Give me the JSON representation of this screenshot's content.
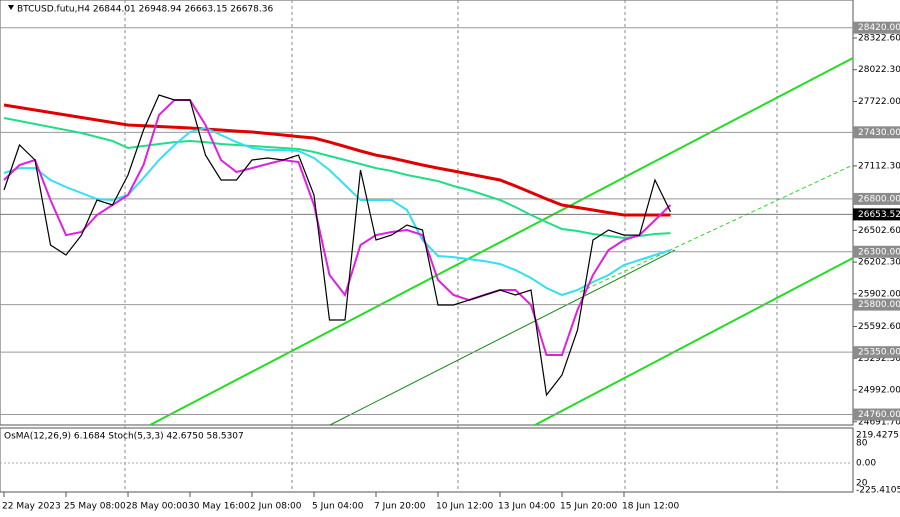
{
  "chart_data": [
    {
      "type": "line",
      "title": "BTCUSD.futu,H4  26844.01 26948.94 26663.15 26678.36",
      "categories": [
        "22 May 2023",
        null,
        null,
        null,
        "25 May 08:00",
        null,
        null,
        null,
        "28 May 00:00",
        null,
        null,
        null,
        "30 May 16:00",
        null,
        null,
        null,
        "2 Jun 08:00",
        null,
        null,
        null,
        "5 Jun 04:00",
        null,
        null,
        null,
        "7 Jun 20:00",
        null,
        null,
        null,
        "10 Jun 12:00",
        null,
        null,
        null,
        "13 Jun 04:00",
        null,
        null,
        null,
        "15 Jun 20:00",
        null,
        null,
        null,
        "18 Jun 12:00",
        null,
        null,
        null
      ],
      "series": [
        {
          "color": "#e00000",
          "values": [
            27689,
            27665,
            27641,
            27618,
            27594,
            27570,
            27547,
            27523,
            27499,
            27492,
            27485,
            27478,
            27471,
            27461,
            27452,
            27442,
            27433,
            27419,
            27405,
            27390,
            27376,
            27338,
            27296,
            27253,
            27215,
            27187,
            27154,
            27121,
            27092,
            27064,
            27036,
            27007,
            26979,
            26922,
            26861,
            26799,
            26742,
            26719,
            26695,
            26671,
            26648,
            26648,
            26648,
            26648
          ]
        },
        {
          "color": "#22dd88",
          "values": [
            27566,
            27537,
            27509,
            27480,
            27452,
            27424,
            27386,
            27348,
            27282,
            27301,
            27320,
            27338,
            27348,
            27338,
            27320,
            27310,
            27301,
            27291,
            27282,
            27272,
            27244,
            27206,
            27168,
            27130,
            27092,
            27064,
            27026,
            26998,
            26969,
            26922,
            26884,
            26837,
            26790,
            26723,
            26648,
            26581,
            26515,
            26496,
            26468,
            26449,
            26430,
            26449,
            26468,
            26477
          ]
        },
        {
          "color": "#33e0f0",
          "values": [
            27045,
            27092,
            27092,
            26979,
            26913,
            26856,
            26799,
            26790,
            26837,
            26998,
            27168,
            27310,
            27433,
            27471,
            27405,
            27338,
            27282,
            27263,
            27263,
            27253,
            27187,
            27073,
            26932,
            26790,
            26790,
            26790,
            26695,
            26411,
            26260,
            26250,
            26231,
            26212,
            26184,
            26127,
            26052,
            25957,
            25891,
            25938,
            26014,
            26080,
            26175,
            26222,
            26269,
            26316
          ]
        },
        {
          "color": "#e020e0",
          "values": [
            26979,
            27121,
            27168,
            26790,
            26458,
            26487,
            26648,
            26742,
            26837,
            27121,
            27594,
            27736,
            27736,
            27499,
            27168,
            27055,
            27092,
            27130,
            27168,
            27149,
            26742,
            26080,
            25891,
            26364,
            26458,
            26487,
            26506,
            26458,
            26033,
            25891,
            25843,
            25891,
            25938,
            25938,
            25796,
            25323,
            25323,
            25749,
            26080,
            26316,
            26411,
            26458,
            26600,
            26742
          ]
        },
        {
          "color": "#000000",
          "values": [
            26884,
            27310,
            27168,
            26364,
            26269,
            26458,
            26790,
            26742,
            27026,
            27452,
            27783,
            27736,
            27736,
            27215,
            26979,
            26979,
            27168,
            27187,
            27168,
            27215,
            26837,
            25654,
            25654,
            27073,
            26411,
            26458,
            26553,
            26506,
            25796,
            25796,
            25843,
            25891,
            25938,
            25891,
            25938,
            24945,
            25134,
            25560,
            26411,
            26506,
            26458,
            26458,
            26979,
            26678
          ]
        }
      ],
      "ylim": [
        24661,
        28682
      ],
      "yticks": [
        {
          "value": 28322.6,
          "label": "28322.60"
        },
        {
          "value": 28022.3,
          "label": "28022.30"
        },
        {
          "value": 27722,
          "label": "27722.00"
        },
        {
          "value": 27112.3,
          "label": "27112.30"
        },
        {
          "value": 26502.6,
          "label": "26502.60"
        },
        {
          "value": 26202.3,
          "label": "26202.30"
        },
        {
          "value": 25902,
          "label": "25902.00"
        },
        {
          "value": 25592.6,
          "label": "25592.60"
        },
        {
          "value": 25292.3,
          "label": "25292.30"
        },
        {
          "value": 24992,
          "label": "24992.00"
        },
        {
          "value": 24691.7,
          "label": "24691.70"
        }
      ],
      "levels": [
        {
          "value": 28420,
          "label": "28420.00"
        },
        {
          "value": 27430,
          "label": "27430.00"
        },
        {
          "value": 26800,
          "label": "26800.00"
        },
        {
          "value": 26300,
          "label": "26300.00"
        },
        {
          "value": 25800,
          "label": "25800.00"
        },
        {
          "value": 25350,
          "label": "25350.00"
        },
        {
          "value": 24760,
          "label": "24760.00"
        }
      ],
      "current_price": {
        "value": 26653.52,
        "label": "26653.52"
      },
      "grid": true
    },
    {
      "type": "indicator",
      "title": "OsMA(12,26,9) 6.1684  Stoch(5,3,3) 42.6750 58.5307",
      "labels": [
        "219.4275",
        "80",
        "0.00",
        "20",
        "-225.4105"
      ]
    }
  ]
}
